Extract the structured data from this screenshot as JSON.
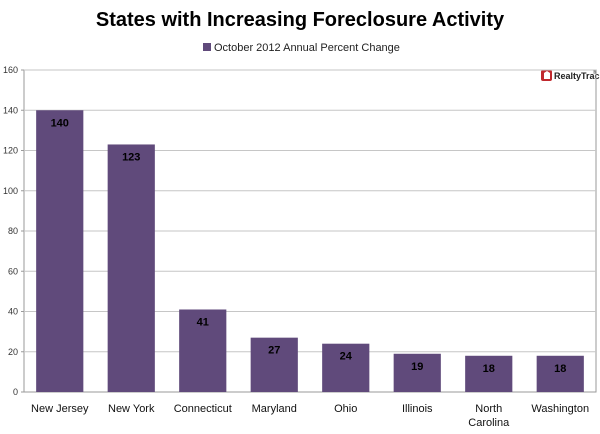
{
  "chart_data": {
    "type": "bar",
    "title": "States with Increasing Foreclosure Activity",
    "legend": "October 2012 Annual Percent Change",
    "legend_position": "top-center",
    "categories": [
      "New Jersey",
      "New York",
      "Connecticut",
      "Maryland",
      "Ohio",
      "Illinois",
      "North Carolina",
      "Washington"
    ],
    "values": [
      140,
      123,
      41,
      27,
      24,
      19,
      18,
      18
    ],
    "ylim": [
      0,
      160
    ],
    "yticks": [
      0,
      20,
      40,
      60,
      80,
      100,
      120,
      140,
      160
    ],
    "xlabel": "",
    "ylabel": "",
    "grid": true,
    "bar_color": "#604a7b"
  },
  "brand": {
    "name": "RealtyTrac",
    "mark": "®"
  }
}
